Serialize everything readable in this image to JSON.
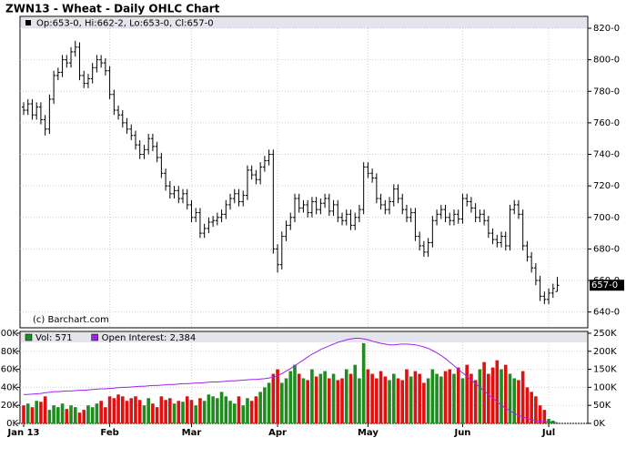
{
  "chart_data": [
    {
      "type": "ohlc",
      "title": "ZWN13 - Wheat - Daily OHLC Chart",
      "legend_text": "Op:653-0, Hi:662-2, Lo:653-0, Cl:657-0",
      "note": "(c) Barchart.com",
      "color": "#000000",
      "categories": [
        "Jan 13",
        null,
        null,
        null,
        null,
        null,
        null,
        null,
        null,
        null,
        null,
        null,
        null,
        null,
        null,
        null,
        null,
        null,
        null,
        null,
        "Feb",
        null,
        null,
        null,
        null,
        null,
        null,
        null,
        null,
        null,
        null,
        null,
        null,
        null,
        null,
        null,
        null,
        null,
        null,
        "Mar",
        null,
        null,
        null,
        null,
        null,
        null,
        null,
        null,
        null,
        null,
        null,
        null,
        null,
        null,
        null,
        null,
        null,
        null,
        null,
        "Apr",
        null,
        null,
        null,
        null,
        null,
        null,
        null,
        null,
        null,
        null,
        null,
        null,
        null,
        null,
        null,
        null,
        null,
        null,
        null,
        null,
        "May",
        null,
        null,
        null,
        null,
        null,
        null,
        null,
        null,
        null,
        null,
        null,
        null,
        null,
        null,
        null,
        null,
        null,
        null,
        null,
        null,
        null,
        "Jun",
        null,
        null,
        null,
        null,
        null,
        null,
        null,
        null,
        null,
        null,
        null,
        null,
        null,
        null,
        null,
        null,
        null,
        null,
        null,
        "Jul",
        null,
        null
      ],
      "open": [
        770,
        768,
        772,
        765,
        770,
        762,
        756,
        775,
        790,
        792,
        800,
        798,
        805,
        808,
        790,
        785,
        788,
        795,
        800,
        798,
        793,
        778,
        768,
        765,
        760,
        756,
        752,
        746,
        740,
        743,
        750,
        745,
        738,
        728,
        720,
        715,
        717,
        712,
        715,
        708,
        700,
        703,
        690,
        693,
        697,
        698,
        700,
        702,
        708,
        712,
        715,
        710,
        714,
        730,
        727,
        724,
        732,
        736,
        740,
        680,
        670,
        688,
        695,
        700,
        712,
        706,
        708,
        703,
        710,
        705,
        709,
        712,
        704,
        708,
        700,
        698,
        702,
        695,
        700,
        705,
        732,
        728,
        725,
        712,
        708,
        705,
        710,
        718,
        712,
        705,
        700,
        703,
        688,
        682,
        678,
        684,
        698,
        702,
        705,
        700,
        698,
        702,
        699,
        712,
        710,
        706,
        700,
        702,
        698,
        690,
        686,
        684,
        688,
        682,
        705,
        708,
        702,
        682,
        675,
        668,
        660,
        650,
        648,
        652,
        653
      ],
      "high": [
        773,
        775,
        775,
        773,
        773,
        765,
        778,
        793,
        795,
        803,
        803,
        808,
        812,
        811,
        793,
        791,
        798,
        803,
        803,
        801,
        796,
        781,
        771,
        768,
        763,
        759,
        755,
        749,
        746,
        753,
        753,
        748,
        741,
        731,
        723,
        720,
        720,
        718,
        718,
        711,
        706,
        706,
        696,
        700,
        701,
        703,
        705,
        711,
        715,
        718,
        718,
        717,
        733,
        733,
        730,
        735,
        739,
        743,
        743,
        683,
        691,
        698,
        703,
        715,
        715,
        711,
        711,
        713,
        713,
        712,
        715,
        715,
        711,
        711,
        703,
        705,
        705,
        703,
        708,
        735,
        735,
        731,
        728,
        715,
        711,
        713,
        721,
        721,
        715,
        708,
        706,
        706,
        691,
        685,
        687,
        701,
        705,
        708,
        708,
        703,
        705,
        705,
        715,
        715,
        713,
        709,
        705,
        705,
        701,
        693,
        689,
        691,
        691,
        708,
        711,
        711,
        705,
        685,
        678,
        671,
        663,
        653,
        655,
        658,
        662.25
      ],
      "low": [
        765,
        765,
        762,
        762,
        759,
        752,
        753,
        772,
        787,
        789,
        795,
        795,
        802,
        787,
        782,
        782,
        785,
        792,
        795,
        790,
        775,
        765,
        762,
        757,
        753,
        749,
        743,
        737,
        737,
        740,
        742,
        735,
        725,
        717,
        712,
        712,
        709,
        709,
        705,
        697,
        697,
        687,
        687,
        690,
        694,
        695,
        697,
        699,
        705,
        709,
        707,
        707,
        711,
        724,
        721,
        721,
        729,
        733,
        677,
        665,
        667,
        685,
        692,
        697,
        703,
        703,
        700,
        700,
        702,
        702,
        706,
        701,
        701,
        697,
        695,
        695,
        692,
        692,
        697,
        702,
        725,
        722,
        709,
        705,
        702,
        702,
        707,
        709,
        702,
        697,
        697,
        685,
        679,
        675,
        675,
        681,
        695,
        699,
        697,
        695,
        695,
        696,
        696,
        707,
        703,
        697,
        697,
        695,
        687,
        683,
        681,
        681,
        679,
        679,
        702,
        699,
        679,
        672,
        665,
        657,
        647,
        645,
        645,
        649,
        653
      ],
      "close": [
        768,
        772,
        765,
        770,
        762,
        756,
        775,
        790,
        792,
        800,
        798,
        805,
        808,
        790,
        785,
        788,
        795,
        800,
        798,
        793,
        778,
        768,
        765,
        760,
        756,
        752,
        746,
        740,
        743,
        750,
        745,
        738,
        728,
        720,
        715,
        717,
        712,
        715,
        708,
        700,
        703,
        690,
        693,
        697,
        698,
        700,
        702,
        708,
        712,
        715,
        710,
        714,
        730,
        727,
        724,
        732,
        736,
        740,
        680,
        670,
        688,
        695,
        700,
        712,
        706,
        708,
        703,
        710,
        705,
        709,
        712,
        704,
        708,
        700,
        698,
        702,
        695,
        700,
        705,
        732,
        728,
        725,
        712,
        708,
        705,
        710,
        718,
        712,
        705,
        700,
        703,
        688,
        682,
        678,
        684,
        698,
        702,
        705,
        700,
        698,
        702,
        699,
        712,
        710,
        706,
        700,
        702,
        698,
        690,
        686,
        684,
        688,
        682,
        705,
        708,
        702,
        682,
        675,
        668,
        660,
        650,
        648,
        652,
        655,
        657
      ],
      "ylim": [
        630,
        827.5
      ],
      "yticks": [
        {
          "value": 640,
          "label": "640-0"
        },
        {
          "value": 660,
          "label": "660-0"
        },
        {
          "value": 680,
          "label": "680-0"
        },
        {
          "value": 700,
          "label": "700-0"
        },
        {
          "value": 720,
          "label": "720-0"
        },
        {
          "value": 740,
          "label": "740-0"
        },
        {
          "value": 760,
          "label": "760-0"
        },
        {
          "value": 780,
          "label": "780-0"
        },
        {
          "value": 800,
          "label": "800-0"
        },
        {
          "value": 820,
          "label": "820-0"
        }
      ],
      "price_marker": {
        "value": 657,
        "label": "657-0"
      },
      "grid": true
    },
    {
      "type": "volume",
      "series": [
        {
          "name": "Vol: 571",
          "color": "#1e8c1e",
          "down_color": "#e01010",
          "values": [
            20000,
            22000,
            18000,
            25000,
            24000,
            30000,
            15000,
            20000,
            18000,
            22000,
            16000,
            20000,
            18000,
            12000,
            15000,
            20000,
            18000,
            22000,
            25000,
            18000,
            30000,
            28000,
            32000,
            30000,
            25000,
            28000,
            30000,
            26000,
            20000,
            28000,
            22000,
            18000,
            30000,
            26000,
            28000,
            22000,
            25000,
            24000,
            30000,
            26000,
            20000,
            28000,
            25000,
            32000,
            30000,
            28000,
            35000,
            30000,
            25000,
            22000,
            30000,
            20000,
            28000,
            25000,
            30000,
            35000,
            40000,
            45000,
            55000,
            60000,
            45000,
            50000,
            58000,
            65000,
            55000,
            50000,
            48000,
            60000,
            52000,
            55000,
            58000,
            50000,
            55000,
            48000,
            50000,
            60000,
            55000,
            65000,
            50000,
            89000,
            60000,
            55000,
            50000,
            58000,
            52000,
            48000,
            55000,
            50000,
            48000,
            60000,
            52000,
            58000,
            55000,
            45000,
            50000,
            60000,
            55000,
            52000,
            58000,
            60000,
            55000,
            62000,
            50000,
            65000,
            55000,
            48000,
            60000,
            68000,
            55000,
            62000,
            70000,
            60000,
            65000,
            55000,
            50000,
            48000,
            58000,
            40000,
            35000,
            30000,
            20000,
            15000,
            5000,
            3000,
            571
          ]
        },
        {
          "name": "Open Interest: 2,384",
          "color": "#a020f0",
          "axis": "y2",
          "values": [
            80000,
            80000,
            81000,
            82000,
            83000,
            85000,
            86000,
            88000,
            88000,
            89000,
            90000,
            90000,
            91000,
            92000,
            92000,
            93000,
            94000,
            95000,
            96000,
            96000,
            97000,
            98000,
            99000,
            100000,
            100000,
            101000,
            102000,
            103000,
            103000,
            104000,
            105000,
            105000,
            106000,
            107000,
            108000,
            108000,
            109000,
            110000,
            110000,
            111000,
            112000,
            112000,
            113000,
            114000,
            115000,
            115000,
            116000,
            117000,
            118000,
            118000,
            119000,
            120000,
            121000,
            122000,
            122000,
            123000,
            124000,
            126000,
            128000,
            132000,
            138000,
            145000,
            152000,
            160000,
            168000,
            176000,
            184000,
            192000,
            198000,
            205000,
            210000,
            215000,
            220000,
            225000,
            228000,
            232000,
            234000,
            236000,
            236000,
            234000,
            232000,
            228000,
            225000,
            222000,
            220000,
            218000,
            218000,
            219000,
            220000,
            220000,
            219000,
            218000,
            215000,
            212000,
            208000,
            202000,
            196000,
            188000,
            180000,
            170000,
            160000,
            150000,
            140000,
            130000,
            120000,
            110000,
            100000,
            90000,
            80000,
            70000,
            60000,
            50000,
            42000,
            35000,
            28000,
            22000,
            18000,
            14000,
            10000,
            8000,
            6000,
            5000,
            4000,
            3000,
            2384
          ]
        }
      ],
      "ylim": [
        0,
        102000
      ],
      "yticks": [
        {
          "value": 0,
          "label": "0K"
        },
        {
          "value": 20000,
          "label": "20K"
        },
        {
          "value": 40000,
          "label": "40K"
        },
        {
          "value": 60000,
          "label": "60K"
        },
        {
          "value": 80000,
          "label": "80K"
        },
        {
          "value": 100000,
          "label": "100K"
        }
      ],
      "y2lim": [
        0,
        255000
      ],
      "y2ticks": [
        {
          "value": 0,
          "label": "0K"
        },
        {
          "value": 50000,
          "label": "50K"
        },
        {
          "value": 100000,
          "label": "100K"
        },
        {
          "value": 150000,
          "label": "150K"
        },
        {
          "value": 200000,
          "label": "200K"
        },
        {
          "value": 250000,
          "label": "250K"
        }
      ],
      "grid": true
    }
  ]
}
